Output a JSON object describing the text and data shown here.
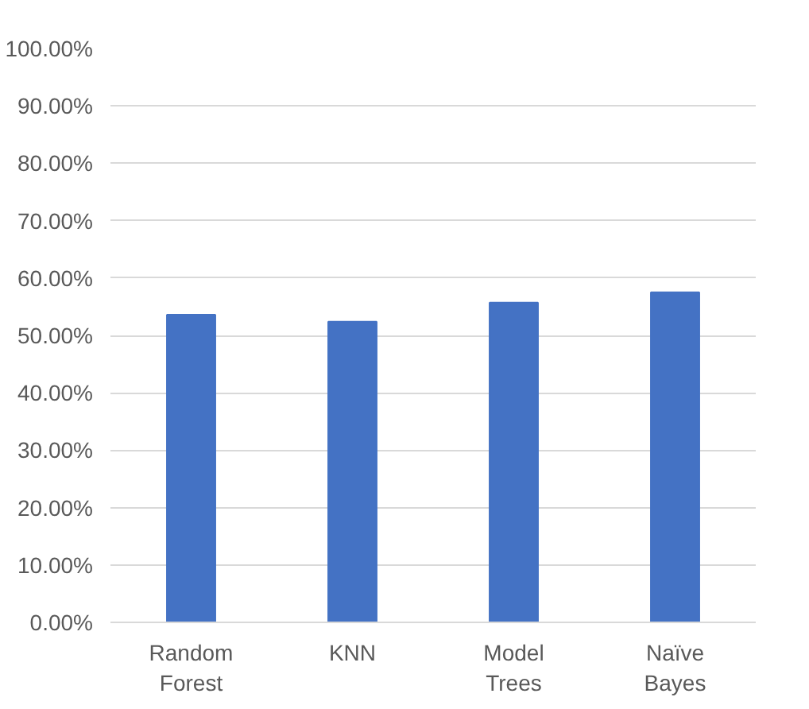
{
  "chart_data": {
    "type": "bar",
    "categories": [
      "Random Forest",
      "KNN",
      "Model Trees",
      "Naïve Bayes"
    ],
    "values": [
      53.6,
      52.4,
      55.7,
      57.5
    ],
    "color": "#4472c4",
    "ylim": [
      0,
      100
    ],
    "yticks": [
      {
        "value": 0,
        "label": "0.00%"
      },
      {
        "value": 10,
        "label": "10.00%"
      },
      {
        "value": 20,
        "label": "20.00%"
      },
      {
        "value": 30,
        "label": "30.00%"
      },
      {
        "value": 40,
        "label": "40.00%"
      },
      {
        "value": 50,
        "label": "50.00%"
      },
      {
        "value": 60,
        "label": "60.00%"
      },
      {
        "value": 70,
        "label": "70.00%"
      },
      {
        "value": 80,
        "label": "80.00%"
      },
      {
        "value": 90,
        "label": "90.00%"
      },
      {
        "value": 100,
        "label": "100.00%"
      }
    ],
    "grid": "y"
  }
}
